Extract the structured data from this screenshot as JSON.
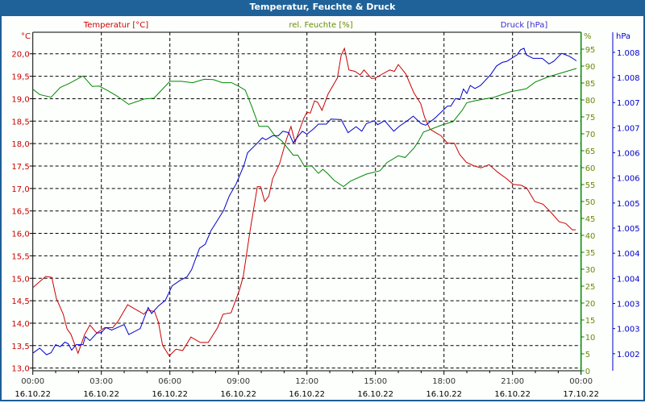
{
  "window": {
    "title": "Temperatur, Feuchte & Druck"
  },
  "colors": {
    "temperature": "#cc0000",
    "humidity": "#008800",
    "pressure": "#0000cc",
    "humidity_label": "#6a8a00",
    "titlebar": "#1f6299"
  },
  "chart_data": {
    "type": "line",
    "title": "Temperatur, Feuchte & Druck",
    "legend": [
      "Temperatur [°C]",
      "rel. Feuchte [%]",
      "Druck [hPa]"
    ],
    "grid": true,
    "x_unit": "hours since 16.10.22 00:00",
    "xlim": [
      0,
      24
    ],
    "x_ticks": [
      {
        "time": "00:00",
        "date": "16.10.22"
      },
      {
        "time": "03:00",
        "date": "16.10.22"
      },
      {
        "time": "06:00",
        "date": "16.10.22"
      },
      {
        "time": "09:00",
        "date": "16.10.22"
      },
      {
        "time": "12:00",
        "date": "16.10.22"
      },
      {
        "time": "15:00",
        "date": "16.10.22"
      },
      {
        "time": "18:00",
        "date": "16.10.22"
      },
      {
        "time": "21:00",
        "date": "16.10.22"
      },
      {
        "time": "00:00",
        "date": "17.10.22"
      }
    ],
    "axes": {
      "temperature": {
        "unit": "°C",
        "ylim": [
          12.94,
          20.48
        ],
        "ticks": [
          "20,0",
          "19,5",
          "19,0",
          "18,5",
          "18,0",
          "17,5",
          "17,0",
          "16,5",
          "16,0",
          "15,5",
          "15,0",
          "14,5",
          "14,0",
          "13,5",
          "13,0"
        ]
      },
      "humidity": {
        "unit": "%",
        "ylim": [
          0,
          100
        ],
        "ticks": [
          "95",
          "90",
          "85",
          "80",
          "75",
          "70",
          "65",
          "60",
          "55",
          "50",
          "45",
          "40",
          "35",
          "30",
          "25",
          "20",
          "15",
          "10",
          "5",
          "0"
        ]
      },
      "pressure": {
        "unit": "hPa",
        "ylim": [
          1.00166,
          1.0084
        ],
        "ticks": [
          "1.008",
          "1.008",
          "1.007",
          "1.007",
          "1.006",
          "1.006",
          "1.005",
          "1.005",
          "1.004",
          "1.004",
          "1.003",
          "1.003",
          "1.002"
        ]
      }
    },
    "series": [
      {
        "name": "Temperatur [°C]",
        "axis": "temperature",
        "points": [
          [
            0,
            14.79
          ],
          [
            0.56,
            15.04
          ],
          [
            0.83,
            15.02
          ],
          [
            1.03,
            14.55
          ],
          [
            1.33,
            14.2
          ],
          [
            1.5,
            13.87
          ],
          [
            1.67,
            13.75
          ],
          [
            1.98,
            13.33
          ],
          [
            2.27,
            13.75
          ],
          [
            2.5,
            13.96
          ],
          [
            2.8,
            13.78
          ],
          [
            3.15,
            13.9
          ],
          [
            3.5,
            13.9
          ],
          [
            3.74,
            14.05
          ],
          [
            4.15,
            14.41
          ],
          [
            4.56,
            14.29
          ],
          [
            4.86,
            14.2
          ],
          [
            5.03,
            14.29
          ],
          [
            5.33,
            14.26
          ],
          [
            5.5,
            14.02
          ],
          [
            5.68,
            13.51
          ],
          [
            5.97,
            13.27
          ],
          [
            6.27,
            13.42
          ],
          [
            6.56,
            13.39
          ],
          [
            6.92,
            13.69
          ],
          [
            7.33,
            13.57
          ],
          [
            7.68,
            13.57
          ],
          [
            8.09,
            13.9
          ],
          [
            8.33,
            14.2
          ],
          [
            8.68,
            14.23
          ],
          [
            9.04,
            14.73
          ],
          [
            9.21,
            15.04
          ],
          [
            9.5,
            16.03
          ],
          [
            9.83,
            17.04
          ],
          [
            9.97,
            17.04
          ],
          [
            10.15,
            16.71
          ],
          [
            10.33,
            16.83
          ],
          [
            10.5,
            17.22
          ],
          [
            10.8,
            17.55
          ],
          [
            11.1,
            18.09
          ],
          [
            11.3,
            18.38
          ],
          [
            11.48,
            18.03
          ],
          [
            11.86,
            18.56
          ],
          [
            12.0,
            18.7
          ],
          [
            12.15,
            18.68
          ],
          [
            12.33,
            18.95
          ],
          [
            12.47,
            18.92
          ],
          [
            12.66,
            18.74
          ],
          [
            12.92,
            19.1
          ],
          [
            13.33,
            19.46
          ],
          [
            13.5,
            19.97
          ],
          [
            13.64,
            20.12
          ],
          [
            13.84,
            19.64
          ],
          [
            14.1,
            19.61
          ],
          [
            14.33,
            19.53
          ],
          [
            14.5,
            19.64
          ],
          [
            14.83,
            19.45
          ],
          [
            15.0,
            19.46
          ],
          [
            15.2,
            19.52
          ],
          [
            15.62,
            19.64
          ],
          [
            15.83,
            19.61
          ],
          [
            16.0,
            19.76
          ],
          [
            16.33,
            19.55
          ],
          [
            16.68,
            19.13
          ],
          [
            16.98,
            18.89
          ],
          [
            17.15,
            18.59
          ],
          [
            17.39,
            18.32
          ],
          [
            17.68,
            18.23
          ],
          [
            17.86,
            18.18
          ],
          [
            18.15,
            18.01
          ],
          [
            18.45,
            18.01
          ],
          [
            18.68,
            17.76
          ],
          [
            18.98,
            17.58
          ],
          [
            19.33,
            17.5
          ],
          [
            19.62,
            17.46
          ],
          [
            19.98,
            17.53
          ],
          [
            20.33,
            17.37
          ],
          [
            20.74,
            17.22
          ],
          [
            21.03,
            17.09
          ],
          [
            21.38,
            17.07
          ],
          [
            21.62,
            17.01
          ],
          [
            21.97,
            16.71
          ],
          [
            22.33,
            16.65
          ],
          [
            22.68,
            16.47
          ],
          [
            23.04,
            16.26
          ],
          [
            23.33,
            16.22
          ],
          [
            23.62,
            16.08
          ],
          [
            23.77,
            16.08
          ]
        ]
      },
      {
        "name": "rel. Feuchte [%]",
        "axis": "humidity",
        "points": [
          [
            0,
            83.2
          ],
          [
            0.3,
            81.6
          ],
          [
            0.8,
            80.8
          ],
          [
            1.2,
            83.7
          ],
          [
            1.6,
            84.9
          ],
          [
            2.2,
            87.1
          ],
          [
            2.6,
            84.0
          ],
          [
            2.9,
            84.1
          ],
          [
            3.3,
            82.7
          ],
          [
            3.7,
            81.1
          ],
          [
            4.2,
            78.7
          ],
          [
            4.5,
            79.4
          ],
          [
            4.9,
            80.3
          ],
          [
            5.3,
            80.5
          ],
          [
            6.0,
            85.5
          ],
          [
            6.5,
            85.5
          ],
          [
            7.0,
            85.1
          ],
          [
            7.5,
            86.1
          ],
          [
            7.9,
            86.0
          ],
          [
            8.3,
            85.1
          ],
          [
            8.7,
            85.1
          ],
          [
            9.0,
            84.1
          ],
          [
            9.3,
            82.9
          ],
          [
            9.6,
            77.8
          ],
          [
            9.9,
            72.2
          ],
          [
            10.3,
            72.2
          ],
          [
            10.6,
            69.4
          ],
          [
            10.9,
            67.9
          ],
          [
            11.4,
            63.7
          ],
          [
            11.6,
            63.7
          ],
          [
            11.9,
            60.3
          ],
          [
            12.2,
            60.6
          ],
          [
            12.5,
            58.3
          ],
          [
            12.7,
            59.5
          ],
          [
            12.9,
            58.3
          ],
          [
            13.2,
            56.2
          ],
          [
            13.6,
            54.4
          ],
          [
            13.9,
            56.0
          ],
          [
            14.6,
            58.1
          ],
          [
            15.2,
            59.1
          ],
          [
            15.5,
            61.5
          ],
          [
            16.0,
            63.5
          ],
          [
            16.3,
            63.0
          ],
          [
            16.7,
            65.9
          ],
          [
            16.9,
            68.0
          ],
          [
            17.1,
            70.5
          ],
          [
            17.9,
            72.6
          ],
          [
            18.4,
            73.6
          ],
          [
            18.8,
            77.0
          ],
          [
            19.0,
            79.2
          ],
          [
            19.4,
            79.8
          ],
          [
            20.2,
            80.8
          ],
          [
            20.9,
            82.4
          ],
          [
            21.6,
            83.3
          ],
          [
            22.0,
            85.3
          ],
          [
            22.6,
            86.9
          ],
          [
            23.2,
            88.1
          ],
          [
            23.8,
            89.3
          ]
        ]
      },
      {
        "name": "Druck [hPa]",
        "axis": "pressure",
        "points": [
          [
            0,
            1.00201
          ],
          [
            0.3,
            1.00211
          ],
          [
            0.6,
            1.00198
          ],
          [
            0.8,
            1.00202
          ],
          [
            1.0,
            1.00218
          ],
          [
            1.2,
            1.00214
          ],
          [
            1.4,
            1.00223
          ],
          [
            1.55,
            1.0022
          ],
          [
            1.7,
            1.00207
          ],
          [
            1.9,
            1.00218
          ],
          [
            2.2,
            1.00218
          ],
          [
            2.3,
            1.00234
          ],
          [
            2.5,
            1.00226
          ],
          [
            2.8,
            1.00241
          ],
          [
            3.0,
            1.00242
          ],
          [
            3.2,
            1.00252
          ],
          [
            3.45,
            1.00247
          ],
          [
            3.7,
            1.00252
          ],
          [
            4.0,
            1.00258
          ],
          [
            4.2,
            1.00238
          ],
          [
            4.7,
            1.0025
          ],
          [
            5.05,
            1.00292
          ],
          [
            5.2,
            1.0028
          ],
          [
            5.5,
            1.00295
          ],
          [
            5.8,
            1.00306
          ],
          [
            6.1,
            1.00335
          ],
          [
            6.45,
            1.00346
          ],
          [
            6.75,
            1.00353
          ],
          [
            6.95,
            1.00367
          ],
          [
            7.3,
            1.0041
          ],
          [
            7.55,
            1.00418
          ],
          [
            7.8,
            1.00445
          ],
          [
            8.05,
            1.00463
          ],
          [
            8.35,
            1.00485
          ],
          [
            8.6,
            1.00514
          ],
          [
            8.9,
            1.00538
          ],
          [
            9.25,
            1.00576
          ],
          [
            9.4,
            1.006
          ],
          [
            9.8,
            1.00618
          ],
          [
            10.05,
            1.0063
          ],
          [
            10.2,
            1.00626
          ],
          [
            10.5,
            1.00634
          ],
          [
            10.75,
            1.00634
          ],
          [
            10.95,
            1.00643
          ],
          [
            11.2,
            1.0064
          ],
          [
            11.4,
            1.0062
          ],
          [
            11.6,
            1.00632
          ],
          [
            11.8,
            1.00643
          ],
          [
            12.0,
            1.00637
          ],
          [
            12.3,
            1.00648
          ],
          [
            12.5,
            1.00657
          ],
          [
            12.85,
            1.00657
          ],
          [
            13.05,
            1.00667
          ],
          [
            13.5,
            1.00666
          ],
          [
            13.8,
            1.0064
          ],
          [
            14.15,
            1.00652
          ],
          [
            14.4,
            1.00643
          ],
          [
            14.6,
            1.00658
          ],
          [
            14.95,
            1.00664
          ],
          [
            15.1,
            1.00656
          ],
          [
            15.4,
            1.00664
          ],
          [
            15.8,
            1.00643
          ],
          [
            16.05,
            1.00653
          ],
          [
            16.4,
            1.00664
          ],
          [
            16.65,
            1.00673
          ],
          [
            17.0,
            1.00658
          ],
          [
            17.2,
            1.00655
          ],
          [
            17.6,
            1.00669
          ],
          [
            18.15,
            1.00693
          ],
          [
            18.3,
            1.00693
          ],
          [
            18.5,
            1.00708
          ],
          [
            18.7,
            1.00706
          ],
          [
            18.85,
            1.00727
          ],
          [
            19.0,
            1.00718
          ],
          [
            19.15,
            1.00734
          ],
          [
            19.35,
            1.00728
          ],
          [
            19.6,
            1.00734
          ],
          [
            20.05,
            1.00756
          ],
          [
            20.3,
            1.00773
          ],
          [
            20.55,
            1.0078
          ],
          [
            20.75,
            1.00782
          ],
          [
            21.2,
            1.00795
          ],
          [
            21.35,
            1.00805
          ],
          [
            21.5,
            1.00808
          ],
          [
            21.6,
            1.00795
          ],
          [
            21.9,
            1.00788
          ],
          [
            22.3,
            1.00788
          ],
          [
            22.6,
            1.00777
          ],
          [
            22.8,
            1.00782
          ],
          [
            23.15,
            1.00798
          ],
          [
            23.5,
            1.00792
          ],
          [
            23.8,
            1.00783
          ]
        ]
      }
    ]
  }
}
